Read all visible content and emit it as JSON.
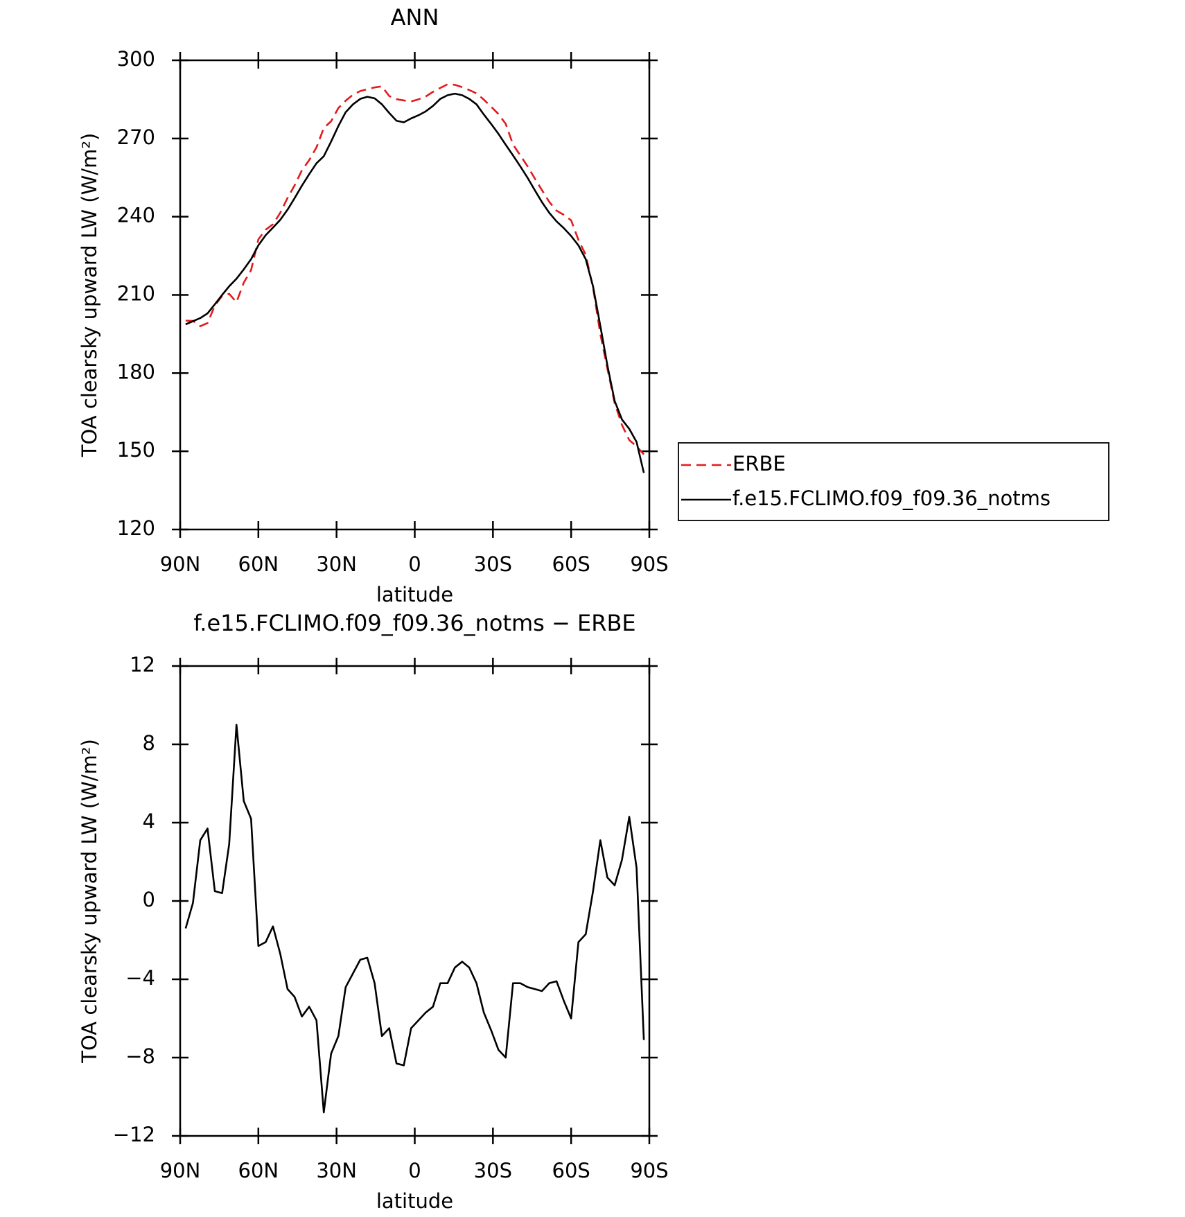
{
  "chart_data": [
    {
      "type": "line",
      "title": "ANN",
      "xlabel": "latitude",
      "ylabel": "TOA clearsky upward LW (W/m²)",
      "x": [
        87.9,
        85.1,
        82.3,
        79.5,
        76.7,
        73.9,
        71.2,
        68.4,
        65.6,
        62.8,
        60.0,
        57.2,
        54.4,
        51.6,
        48.8,
        46.1,
        43.3,
        40.5,
        37.7,
        34.9,
        32.1,
        29.3,
        26.5,
        23.7,
        20.9,
        18.2,
        15.4,
        12.6,
        9.8,
        7.0,
        4.2,
        1.4,
        -1.4,
        -4.2,
        -7.0,
        -9.8,
        -12.6,
        -15.4,
        -18.2,
        -20.9,
        -23.7,
        -26.5,
        -29.3,
        -32.1,
        -34.9,
        -37.7,
        -40.5,
        -43.3,
        -46.1,
        -48.8,
        -51.6,
        -54.4,
        -57.2,
        -60.0,
        -62.8,
        -65.6,
        -68.4,
        -71.2,
        -73.9,
        -76.7,
        -79.5,
        -82.3,
        -85.1,
        -87.9
      ],
      "series": [
        {
          "name": "ERBE",
          "color": "#e31a1c",
          "dashed": true,
          "values": [
            200.1,
            200.0,
            198.0,
            199.2,
            205.9,
            209.6,
            210.4,
            207.2,
            214.7,
            219.5,
            231.3,
            235.0,
            237.1,
            241.5,
            247.2,
            252.0,
            257.8,
            261.7,
            266.6,
            274.0,
            276.6,
            281.7,
            284.5,
            286.8,
            288.2,
            288.9,
            289.6,
            290.0,
            286.3,
            285.1,
            284.6,
            284.2,
            285.0,
            286.1,
            287.9,
            289.4,
            290.8,
            290.6,
            289.7,
            288.6,
            287.3,
            284.9,
            282.2,
            279.4,
            275.6,
            267.7,
            263.5,
            259.3,
            254.6,
            250.2,
            245.7,
            242.3,
            240.7,
            238.6,
            231.1,
            225.4,
            212.8,
            195.0,
            181.8,
            168.5,
            160.1,
            154.3,
            151.9,
            148.8
          ]
        },
        {
          "name": "f.e15.FCLIMO.f09_f09.36_notms",
          "color": "#000000",
          "dashed": false,
          "values": [
            198.7,
            199.9,
            201.1,
            202.9,
            206.4,
            210.0,
            213.3,
            216.2,
            219.8,
            223.7,
            229.0,
            232.9,
            235.8,
            238.8,
            242.7,
            247.1,
            251.9,
            256.3,
            260.5,
            263.2,
            268.8,
            274.8,
            280.1,
            283.1,
            285.2,
            286.0,
            285.4,
            283.1,
            279.8,
            276.8,
            276.2,
            277.7,
            278.9,
            280.4,
            282.5,
            285.2,
            286.6,
            287.2,
            286.6,
            285.2,
            283.1,
            279.2,
            275.6,
            271.8,
            267.6,
            263.5,
            259.3,
            254.9,
            250.1,
            245.6,
            241.5,
            238.2,
            235.6,
            232.6,
            229.0,
            223.7,
            213.3,
            198.1,
            183.0,
            169.3,
            162.2,
            158.6,
            153.6,
            141.7
          ]
        }
      ],
      "xlim": [
        90,
        -90
      ],
      "xticks": [
        {
          "value": 90,
          "label": "90N"
        },
        {
          "value": 60,
          "label": "60N"
        },
        {
          "value": 30,
          "label": "30N"
        },
        0,
        {
          "value": -30,
          "label": "30S"
        },
        {
          "value": -60,
          "label": "60S"
        },
        {
          "value": -90,
          "label": "90S"
        }
      ],
      "ylim": [
        120,
        300
      ],
      "yticks": [
        120,
        150,
        180,
        210,
        240,
        270,
        300
      ],
      "legend": "right"
    },
    {
      "type": "line",
      "title": "f.e15.FCLIMO.f09_f09.36_notms − ERBE",
      "xlabel": "latitude",
      "ylabel": "TOA clearsky upward LW (W/m²)",
      "x": [
        87.9,
        85.1,
        82.3,
        79.5,
        76.7,
        73.9,
        71.2,
        68.4,
        65.6,
        62.8,
        60.0,
        57.2,
        54.4,
        51.6,
        48.8,
        46.1,
        43.3,
        40.5,
        37.7,
        34.9,
        32.1,
        29.3,
        26.5,
        23.7,
        20.9,
        18.2,
        15.4,
        12.6,
        9.8,
        7.0,
        4.2,
        1.4,
        -1.4,
        -4.2,
        -7.0,
        -9.8,
        -12.6,
        -15.4,
        -18.2,
        -20.9,
        -23.7,
        -26.5,
        -29.3,
        -32.1,
        -34.9,
        -37.7,
        -40.5,
        -43.3,
        -46.1,
        -48.8,
        -51.6,
        -54.4,
        -57.2,
        -60.0,
        -62.8,
        -65.6,
        -68.4,
        -71.2,
        -73.9,
        -76.7,
        -79.5,
        -82.3,
        -85.1,
        -87.9
      ],
      "series": [
        {
          "color": "#000000",
          "dashed": false,
          "values": [
            -1.4,
            -0.1,
            3.1,
            3.7,
            0.5,
            0.4,
            2.9,
            9.0,
            5.1,
            4.2,
            -2.3,
            -2.1,
            -1.3,
            -2.7,
            -4.5,
            -4.9,
            -5.9,
            -5.4,
            -6.1,
            -10.8,
            -7.8,
            -6.9,
            -4.4,
            -3.7,
            -3.0,
            -2.9,
            -4.2,
            -6.9,
            -6.5,
            -8.3,
            -8.4,
            -6.5,
            -6.1,
            -5.7,
            -5.4,
            -4.2,
            -4.2,
            -3.4,
            -3.1,
            -3.4,
            -4.2,
            -5.7,
            -6.6,
            -7.6,
            -8.0,
            -4.2,
            -4.2,
            -4.4,
            -4.5,
            -4.6,
            -4.2,
            -4.1,
            -5.1,
            -6.0,
            -2.1,
            -1.7,
            0.5,
            3.1,
            1.2,
            0.8,
            2.1,
            4.3,
            1.7,
            -7.1
          ]
        }
      ],
      "xlim": [
        90,
        -90
      ],
      "xticks": [
        {
          "value": 90,
          "label": "90N"
        },
        {
          "value": 60,
          "label": "60N"
        },
        {
          "value": 30,
          "label": "30N"
        },
        0,
        {
          "value": -30,
          "label": "30S"
        },
        {
          "value": -60,
          "label": "60S"
        },
        {
          "value": -90,
          "label": "90S"
        }
      ],
      "ylim": [
        -12,
        12
      ],
      "yticks": [
        {
          "value": -12,
          "label": "−12"
        },
        {
          "value": -8,
          "label": "−8"
        },
        {
          "value": -4,
          "label": "−4"
        },
        0,
        4,
        8,
        12
      ]
    }
  ]
}
